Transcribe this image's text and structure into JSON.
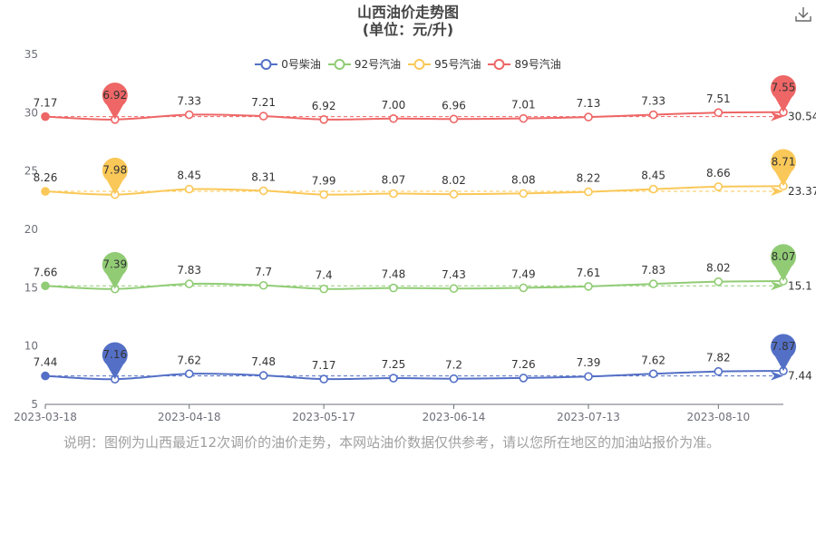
{
  "title_line1": "山西油价走势图",
  "title_line2": "(单位：元/升)",
  "note": "说明：图例为山西最近12次调价的油价走势，本网站油价数据仅供参考，请以您所在地区的加油站报价为准。",
  "toolbar": {
    "download_icon": "download-icon"
  },
  "chart_data": {
    "type": "line",
    "x": [
      "2023-03-18",
      "2023-04-02",
      "2023-04-18",
      "2023-05-04",
      "2023-05-17",
      "2023-06-01",
      "2023-06-14",
      "2023-06-29",
      "2023-07-13",
      "2023-07-27",
      "2023-08-10",
      "2023-08-24"
    ],
    "xticks": [
      "2023-03-18",
      "2023-04-18",
      "2023-05-17",
      "2023-06-14",
      "2023-07-13",
      "2023-08-10"
    ],
    "yticks": [
      5,
      10,
      15,
      20,
      25,
      30,
      35
    ],
    "ylim": [
      5,
      35
    ],
    "series": [
      {
        "name": "0号柴油",
        "color": "#5470c6",
        "offset": 0,
        "values": [
          7.44,
          7.16,
          7.62,
          7.48,
          7.17,
          7.25,
          7.2,
          7.26,
          7.39,
          7.62,
          7.82,
          7.87
        ],
        "labels": [
          "7.44",
          "7.16",
          "7.62",
          "7.48",
          "7.17",
          "7.25",
          "7.2",
          "7.26",
          "7.39",
          "7.62",
          "7.82",
          "7.87"
        ],
        "min_pin": "7.16",
        "max_pin": "7.87",
        "avg_label": "7.44"
      },
      {
        "name": "92号汽油",
        "color": "#91cc75",
        "offset": 7.5,
        "values": [
          7.66,
          7.39,
          7.83,
          7.7,
          7.4,
          7.48,
          7.43,
          7.49,
          7.61,
          7.83,
          8.02,
          8.07
        ],
        "labels": [
          "7.66",
          "7.39",
          "7.83",
          "7.7",
          "7.4",
          "7.48",
          "7.43",
          "7.49",
          "7.61",
          "7.83",
          "8.02",
          "8.07"
        ],
        "min_pin": "7.39",
        "max_pin": "8.07",
        "avg_label": "15.1"
      },
      {
        "name": "95号汽油",
        "color": "#fac858",
        "offset": 15,
        "values": [
          8.26,
          7.98,
          8.45,
          8.31,
          7.99,
          8.07,
          8.02,
          8.08,
          8.22,
          8.45,
          8.66,
          8.71
        ],
        "labels": [
          "8.26",
          "7.98",
          "8.45",
          "8.31",
          "7.99",
          "8.07",
          "8.02",
          "8.08",
          "8.22",
          "8.45",
          "8.66",
          "8.71"
        ],
        "min_pin": "7.98",
        "max_pin": "8.71",
        "avg_label": "23.37"
      },
      {
        "name": "89号汽油",
        "color": "#ee6666",
        "offset": 22.5,
        "values": [
          7.17,
          6.92,
          7.33,
          7.21,
          6.92,
          7.0,
          6.96,
          7.01,
          7.13,
          7.33,
          7.51,
          7.55
        ],
        "labels": [
          "7.17",
          "6.92",
          "7.33",
          "7.21",
          "6.92",
          "7.00",
          "6.96",
          "7.01",
          "7.13",
          "7.33",
          "7.51",
          "7.55"
        ],
        "min_pin": "6.92",
        "max_pin": "7.55",
        "avg_label": "30.54"
      }
    ],
    "legend_position": "top-center",
    "grid": false
  }
}
